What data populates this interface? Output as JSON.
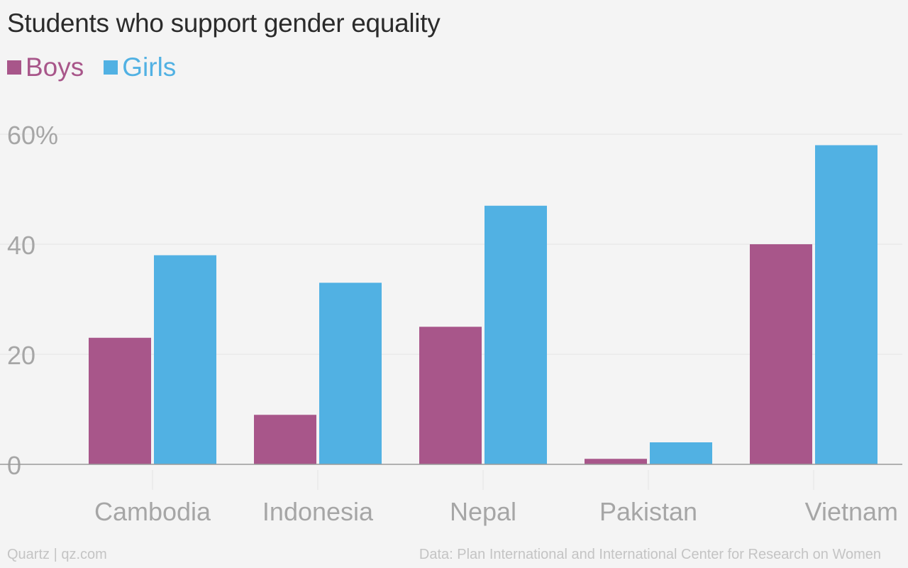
{
  "title": "Students who support gender equality",
  "footer": {
    "source_left": "Quartz | qz.com",
    "source_right": "Data: Plan International and International Center for Research on Women"
  },
  "colors": {
    "boys": "#a8568a",
    "girls": "#51b1e3",
    "grid": "#e3e3e3",
    "axis": "#9a9a9a"
  },
  "chart_data": {
    "type": "bar",
    "title": "Students who support gender equality",
    "categories": [
      "Cambodia",
      "Indonesia",
      "Nepal",
      "Pakistan",
      "Vietnam"
    ],
    "series": [
      {
        "name": "Boys",
        "values": [
          23,
          9,
          25,
          1,
          40
        ]
      },
      {
        "name": "Girls",
        "values": [
          38,
          33,
          47,
          4,
          58
        ]
      }
    ],
    "yticks": [
      "0",
      "20",
      "40",
      "60%"
    ],
    "ylim": [
      0,
      60
    ],
    "xlabel": "",
    "ylabel": "",
    "grid": true,
    "legend_position": "top-left"
  }
}
